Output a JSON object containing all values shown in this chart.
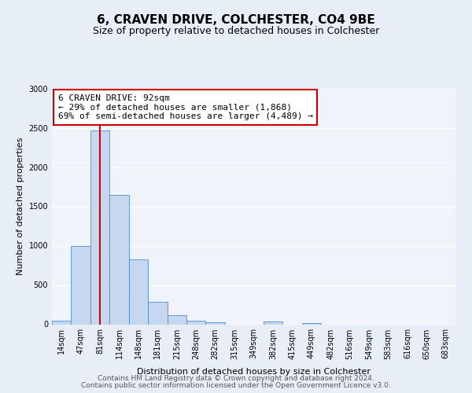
{
  "title": "6, CRAVEN DRIVE, COLCHESTER, CO4 9BE",
  "subtitle": "Size of property relative to detached houses in Colchester",
  "xlabel": "Distribution of detached houses by size in Colchester",
  "ylabel": "Number of detached properties",
  "bin_labels": [
    "14sqm",
    "47sqm",
    "81sqm",
    "114sqm",
    "148sqm",
    "181sqm",
    "215sqm",
    "248sqm",
    "282sqm",
    "315sqm",
    "349sqm",
    "382sqm",
    "415sqm",
    "449sqm",
    "482sqm",
    "516sqm",
    "549sqm",
    "583sqm",
    "616sqm",
    "650sqm",
    "683sqm"
  ],
  "bar_values": [
    50,
    1000,
    2470,
    1650,
    830,
    290,
    120,
    45,
    30,
    0,
    0,
    40,
    0,
    15,
    0,
    0,
    0,
    0,
    0,
    0,
    0
  ],
  "bar_color": "#c5d8f0",
  "bar_edge_color": "#4a90d9",
  "vline_x_idx": 2,
  "vline_color": "#cc0000",
  "annotation_line1": "6 CRAVEN DRIVE: 92sqm",
  "annotation_line2": "← 29% of detached houses are smaller (1,868)",
  "annotation_line3": "69% of semi-detached houses are larger (4,489) →",
  "annotation_box_color": "#cc0000",
  "annotation_box_fill": "#ffffff",
  "ylim": [
    0,
    3000
  ],
  "yticks": [
    0,
    500,
    1000,
    1500,
    2000,
    2500,
    3000
  ],
  "bg_color": "#e8eef7",
  "plot_bg_color": "#f0f4fa",
  "footer_line1": "Contains HM Land Registry data © Crown copyright and database right 2024.",
  "footer_line2": "Contains public sector information licensed under the Open Government Licence v3.0.",
  "title_fontsize": 11,
  "subtitle_fontsize": 9,
  "axis_label_fontsize": 8,
  "tick_fontsize": 7,
  "annotation_fontsize": 8,
  "footer_fontsize": 6.5
}
